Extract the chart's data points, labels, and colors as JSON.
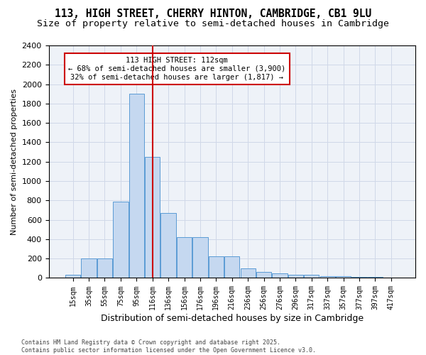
{
  "title_line1": "113, HIGH STREET, CHERRY HINTON, CAMBRIDGE, CB1 9LU",
  "title_line2": "Size of property relative to semi-detached houses in Cambridge",
  "xlabel": "Distribution of semi-detached houses by size in Cambridge",
  "ylabel": "Number of semi-detached properties",
  "bar_color": "#c5d8f0",
  "bar_edge_color": "#5b9bd5",
  "bar_heights": [
    30,
    200,
    200,
    790,
    1900,
    1250,
    670,
    420,
    420,
    220,
    220,
    100,
    60,
    50,
    30,
    30,
    20,
    20,
    10,
    10,
    5
  ],
  "bin_labels": [
    "15sqm",
    "35sqm",
    "55sqm",
    "75sqm",
    "95sqm",
    "116sqm",
    "136sqm",
    "156sqm",
    "176sqm",
    "196sqm",
    "216sqm",
    "236sqm",
    "256sqm",
    "276sqm",
    "296sqm",
    "317sqm",
    "337sqm",
    "357sqm",
    "377sqm",
    "397sqm",
    "417sqm"
  ],
  "property_bin_index": 5,
  "annotation_text": "113 HIGH STREET: 112sqm\n← 68% of semi-detached houses are smaller (3,900)\n32% of semi-detached houses are larger (1,817) →",
  "vline_color": "#cc0000",
  "annotation_box_edge": "#cc0000",
  "ylim_max": 2400,
  "yticks": [
    0,
    200,
    400,
    600,
    800,
    1000,
    1200,
    1400,
    1600,
    1800,
    2000,
    2200,
    2400
  ],
  "grid_color": "#d0d8e8",
  "bg_color": "#eef2f8",
  "footer_text": "Contains HM Land Registry data © Crown copyright and database right 2025.\nContains public sector information licensed under the Open Government Licence v3.0.",
  "title_fontsize": 10.5,
  "subtitle_fontsize": 9.5
}
